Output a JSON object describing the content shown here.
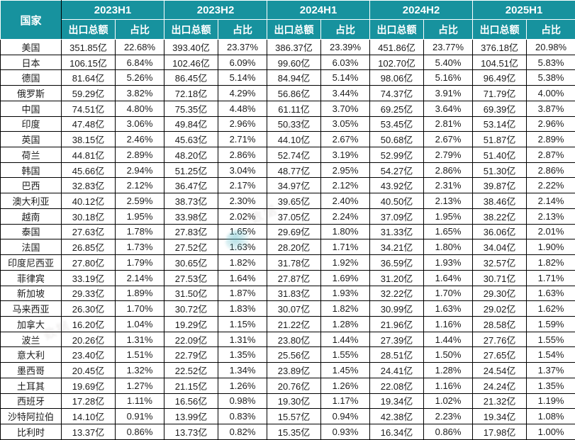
{
  "colors": {
    "header_bg": "#17929E",
    "header_text": "#FFFFFF",
    "body_text": "#1C1C1C",
    "grid": "#000000",
    "watermark_splash": "#5AB9C6"
  },
  "watermark": {
    "text": "数据"
  },
  "chart_data": {
    "type": "table",
    "row_header": "国家",
    "periods": [
      "2023H1",
      "2023H2",
      "2024H1",
      "2024H2",
      "2025H1"
    ],
    "measures": [
      "出口总额",
      "占比"
    ],
    "amount_unit": "亿",
    "share_unit": "%",
    "rows": [
      {
        "country": "美国",
        "exports": [
          351.85,
          393.4,
          386.37,
          451.86,
          376.18
        ],
        "share": [
          22.68,
          23.37,
          23.39,
          23.77,
          20.98
        ]
      },
      {
        "country": "日本",
        "exports": [
          106.15,
          102.46,
          99.6,
          102.7,
          104.51
        ],
        "share": [
          6.84,
          6.09,
          6.03,
          5.4,
          5.83
        ]
      },
      {
        "country": "德国",
        "exports": [
          81.64,
          86.45,
          84.94,
          98.06,
          96.49
        ],
        "share": [
          5.26,
          5.14,
          5.14,
          5.16,
          5.38
        ]
      },
      {
        "country": "俄罗斯",
        "exports": [
          59.29,
          72.18,
          56.86,
          74.37,
          71.79
        ],
        "share": [
          3.82,
          4.29,
          3.44,
          3.91,
          4.0
        ]
      },
      {
        "country": "中国",
        "exports": [
          74.51,
          75.35,
          61.11,
          69.25,
          69.39
        ],
        "share": [
          4.8,
          4.48,
          3.7,
          3.64,
          3.87
        ]
      },
      {
        "country": "印度",
        "exports": [
          47.48,
          49.84,
          50.33,
          53.45,
          53.14
        ],
        "share": [
          3.06,
          2.96,
          3.05,
          2.81,
          2.96
        ]
      },
      {
        "country": "英国",
        "exports": [
          38.15,
          45.63,
          44.1,
          50.68,
          51.87
        ],
        "share": [
          2.46,
          2.71,
          2.67,
          2.67,
          2.89
        ]
      },
      {
        "country": "荷兰",
        "exports": [
          44.81,
          48.2,
          52.74,
          52.99,
          51.4
        ],
        "share": [
          2.89,
          2.86,
          3.19,
          2.79,
          2.87
        ]
      },
      {
        "country": "韩国",
        "exports": [
          45.66,
          51.25,
          48.77,
          54.27,
          51.3
        ],
        "share": [
          2.94,
          3.04,
          2.95,
          2.86,
          2.86
        ]
      },
      {
        "country": "巴西",
        "exports": [
          32.83,
          36.47,
          34.97,
          43.92,
          39.87
        ],
        "share": [
          2.12,
          2.17,
          2.12,
          2.31,
          2.22
        ]
      },
      {
        "country": "澳大利亚",
        "exports": [
          40.12,
          38.73,
          39.65,
          40.5,
          38.46
        ],
        "share": [
          2.59,
          2.3,
          2.4,
          2.13,
          2.14
        ]
      },
      {
        "country": "越南",
        "exports": [
          30.18,
          33.98,
          37.05,
          37.09,
          38.22
        ],
        "share": [
          1.95,
          2.02,
          2.24,
          1.95,
          2.13
        ]
      },
      {
        "country": "泰国",
        "exports": [
          27.63,
          27.83,
          29.69,
          31.33,
          36.06
        ],
        "share": [
          1.78,
          1.65,
          1.8,
          1.65,
          2.01
        ]
      },
      {
        "country": "法国",
        "exports": [
          26.85,
          27.52,
          28.2,
          34.21,
          34.04
        ],
        "share": [
          1.73,
          1.63,
          1.71,
          1.8,
          1.9
        ]
      },
      {
        "country": "印度尼西亚",
        "exports": [
          27.8,
          30.65,
          31.78,
          36.59,
          32.57
        ],
        "share": [
          1.79,
          1.82,
          1.92,
          1.93,
          1.82
        ]
      },
      {
        "country": "菲律宾",
        "exports": [
          33.19,
          27.53,
          27.87,
          31.2,
          30.71
        ],
        "share": [
          2.14,
          1.64,
          1.69,
          1.64,
          1.71
        ]
      },
      {
        "country": "新加坡",
        "exports": [
          29.33,
          31.5,
          31.83,
          32.22,
          29.3
        ],
        "share": [
          1.89,
          1.87,
          1.93,
          1.7,
          1.63
        ]
      },
      {
        "country": "马来西亚",
        "exports": [
          26.3,
          30.72,
          30.07,
          30.99,
          29.02
        ],
        "share": [
          1.7,
          1.83,
          1.82,
          1.63,
          1.62
        ]
      },
      {
        "country": "加拿大",
        "exports": [
          16.2,
          19.29,
          21.22,
          21.96,
          28.58
        ],
        "share": [
          1.04,
          1.15,
          1.28,
          1.16,
          1.59
        ]
      },
      {
        "country": "波兰",
        "exports": [
          20.26,
          22.09,
          23.8,
          27.39,
          27.76
        ],
        "share": [
          1.31,
          1.31,
          1.44,
          1.44,
          1.55
        ]
      },
      {
        "country": "意大利",
        "exports": [
          23.4,
          22.79,
          25.56,
          28.51,
          27.65
        ],
        "share": [
          1.51,
          1.35,
          1.55,
          1.5,
          1.54
        ]
      },
      {
        "country": "墨西哥",
        "exports": [
          20.45,
          22.52,
          23.89,
          24.41,
          24.54
        ],
        "share": [
          1.32,
          1.34,
          1.45,
          1.28,
          1.37
        ]
      },
      {
        "country": "土耳其",
        "exports": [
          19.69,
          21.15,
          20.76,
          22.08,
          24.24
        ],
        "share": [
          1.27,
          1.26,
          1.26,
          1.16,
          1.35
        ]
      },
      {
        "country": "西班牙",
        "exports": [
          17.28,
          16.56,
          19.3,
          19.34,
          21.32
        ],
        "share": [
          1.11,
          0.98,
          1.17,
          1.02,
          1.19
        ]
      },
      {
        "country": "沙特阿拉伯",
        "exports": [
          14.1,
          13.99,
          15.57,
          42.38,
          19.34
        ],
        "share": [
          0.91,
          0.83,
          0.94,
          2.23,
          1.08
        ]
      },
      {
        "country": "比利时",
        "exports": [
          13.37,
          13.73,
          15.35,
          16.34,
          17.98
        ],
        "share": [
          0.86,
          0.82,
          0.93,
          0.86,
          1.0
        ]
      }
    ]
  }
}
